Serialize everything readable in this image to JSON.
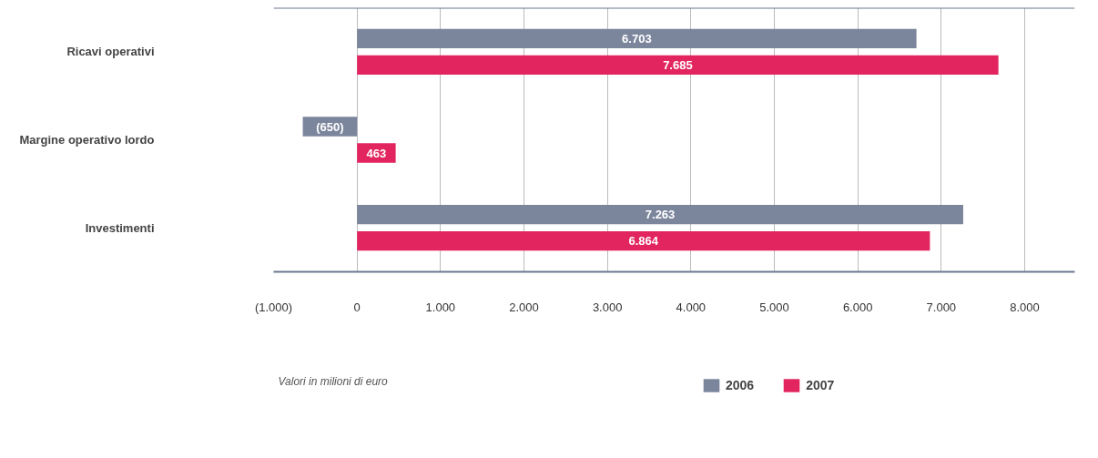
{
  "chart_data": {
    "type": "bar",
    "orientation": "horizontal",
    "categories": [
      "Ricavi operativi",
      "Margine operativo lordo",
      "Investimenti"
    ],
    "series": [
      {
        "name": "2006",
        "color": "#7b859c",
        "values": [
          6703,
          -650,
          7263
        ],
        "value_labels": [
          "6.703",
          "(650)",
          "7.263"
        ]
      },
      {
        "name": "2007",
        "color": "#e2255f",
        "values": [
          7685,
          463,
          6864
        ],
        "value_labels": [
          "7.685",
          "463",
          "6.864"
        ]
      }
    ],
    "xlim": [
      -1000,
      8600
    ],
    "xticks": [
      {
        "value": -1000,
        "label": "(1.000)"
      },
      0,
      {
        "value": 1000,
        "label": "1.000"
      },
      {
        "value": 2000,
        "label": "2.000"
      },
      {
        "value": 3000,
        "label": "3.000"
      },
      {
        "value": 4000,
        "label": "4.000"
      },
      {
        "value": 5000,
        "label": "5.000"
      },
      {
        "value": 6000,
        "label": "6.000"
      },
      {
        "value": 7000,
        "label": "7.000"
      },
      {
        "value": 8000,
        "label": "8.000"
      }
    ],
    "grid": "x",
    "legend": "bottom",
    "annotations": [
      "Valori in milioni di euro"
    ]
  }
}
